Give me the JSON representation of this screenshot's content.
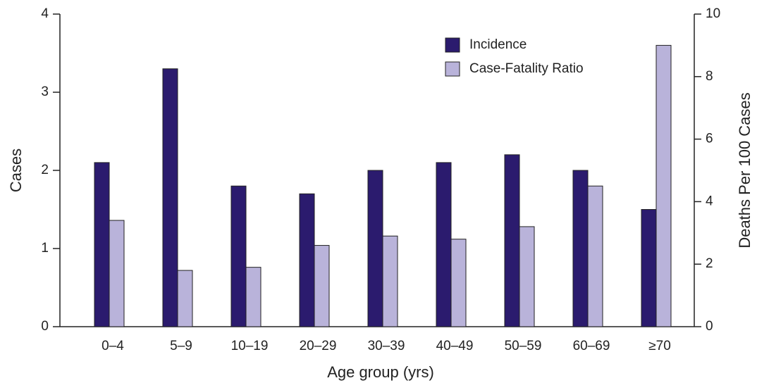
{
  "chart_data": {
    "type": "bar",
    "categories": [
      "0–4",
      "5–9",
      "10–19",
      "20–29",
      "30–39",
      "40–49",
      "50–59",
      "60–69",
      "≥70"
    ],
    "series": [
      {
        "name": "Incidence",
        "color": "#2b1b6e",
        "values": [
          2.1,
          3.3,
          1.8,
          1.7,
          2.0,
          2.1,
          2.2,
          2.0,
          1.5
        ]
      },
      {
        "name": "Case-Fatality Ratio",
        "color": "#b9b3da",
        "axis": "y2",
        "values": [
          3.4,
          1.8,
          1.9,
          2.6,
          2.9,
          2.8,
          3.2,
          4.5,
          9.0
        ]
      }
    ],
    "xlabel": "Age group (yrs)",
    "ylabel": "Cases",
    "y2label": "Deaths Per 100 Cases",
    "ylim": [
      0,
      4
    ],
    "yticks": [
      0,
      1,
      2,
      3,
      4
    ],
    "y2lim": [
      0,
      10
    ],
    "y2ticks": [
      0,
      2,
      4,
      6,
      8,
      10
    ],
    "legend": "upper right"
  }
}
